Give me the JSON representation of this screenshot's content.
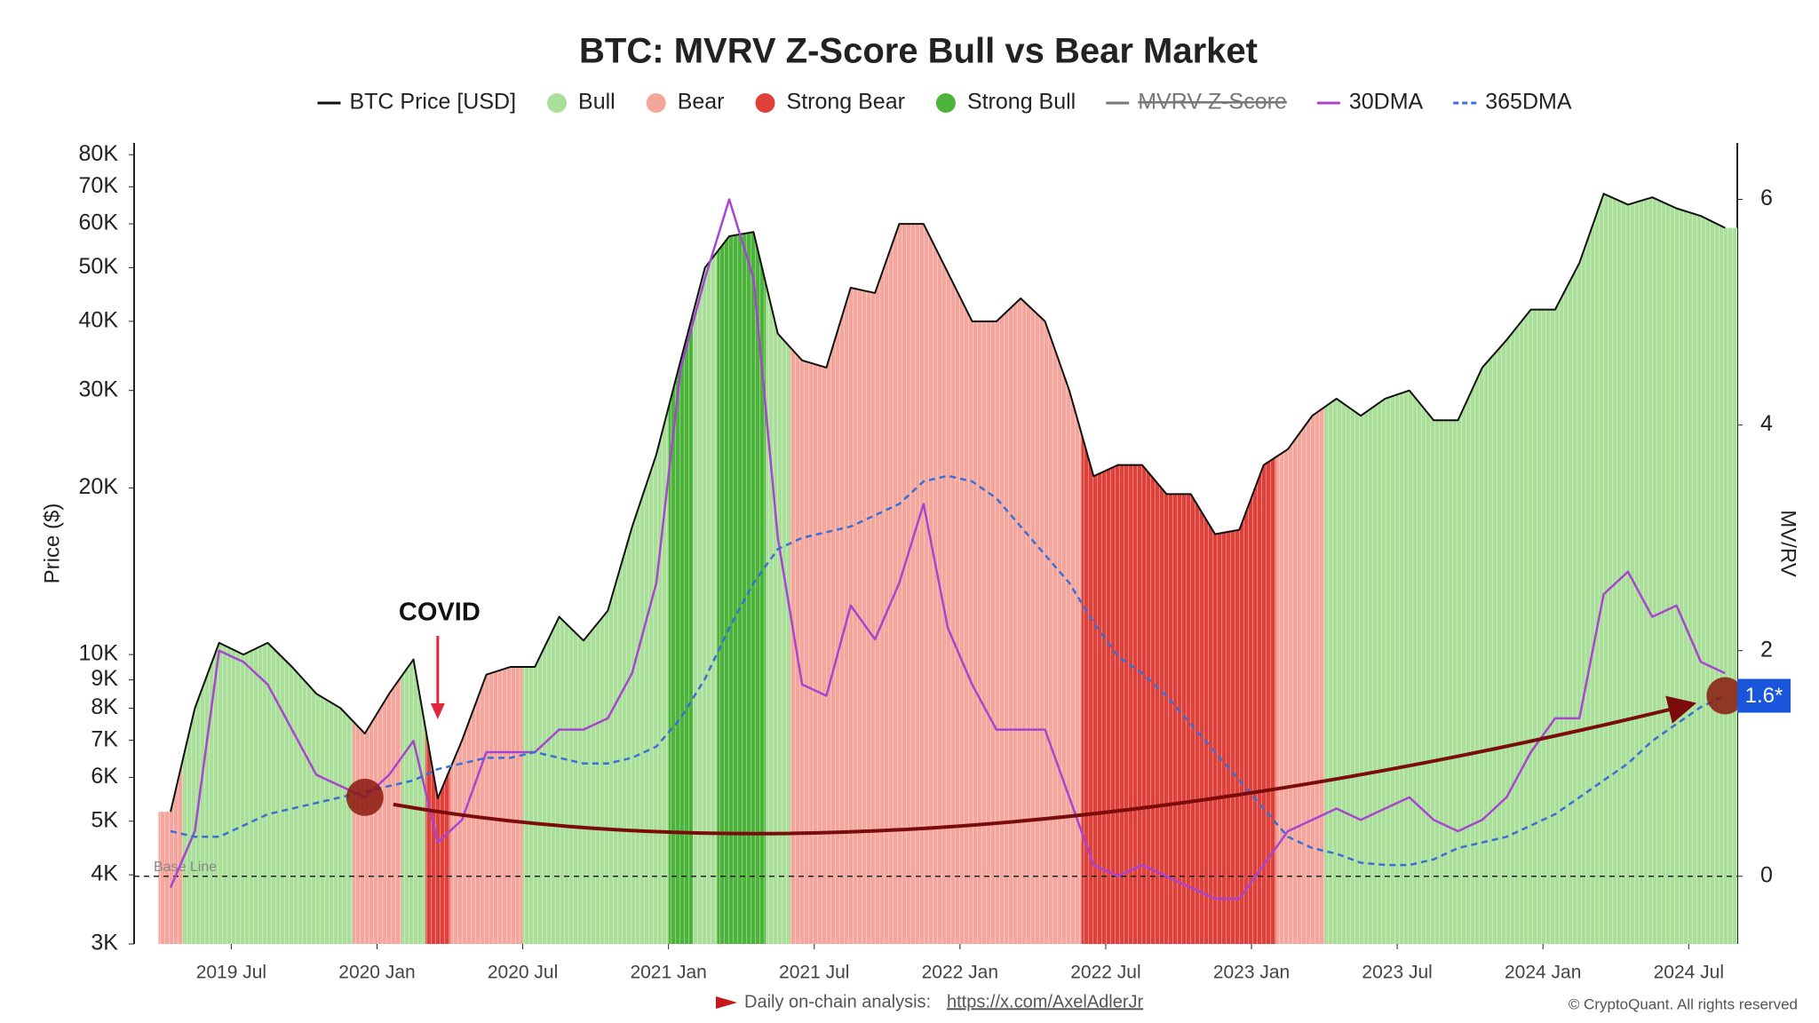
{
  "chart_data": {
    "type": "regime",
    "title": "BTC: MVRV Z-Score Bull vs Bear Market",
    "y_label": "Price ($)",
    "y2_label": "MV/RV",
    "log_scale": true,
    "x": [
      "2019-04",
      "2019-05",
      "2019-06",
      "2019-07",
      "2019-08",
      "2019-09",
      "2019-10",
      "2019-11",
      "2019-12",
      "2020-01",
      "2020-02",
      "2020-03",
      "2020-04",
      "2020-05",
      "2020-06",
      "2020-07",
      "2020-08",
      "2020-09",
      "2020-10",
      "2020-11",
      "2020-12",
      "2021-01",
      "2021-02",
      "2021-03",
      "2021-04",
      "2021-05",
      "2021-06",
      "2021-07",
      "2021-08",
      "2021-09",
      "2021-10",
      "2021-11",
      "2021-12",
      "2022-01",
      "2022-02",
      "2022-03",
      "2022-04",
      "2022-05",
      "2022-06",
      "2022-07",
      "2022-08",
      "2022-09",
      "2022-10",
      "2022-11",
      "2022-12",
      "2023-01",
      "2023-02",
      "2023-03",
      "2023-04",
      "2023-05",
      "2023-06",
      "2023-07",
      "2023-08",
      "2023-09",
      "2023-10",
      "2023-11",
      "2023-12",
      "2024-01",
      "2024-02",
      "2024-03",
      "2024-04",
      "2024-05",
      "2024-06",
      "2024-07",
      "2024-08"
    ],
    "xlim": [
      "2019-03",
      "2024-09"
    ],
    "xticks": [
      {
        "value": "2019-07",
        "label": "2019 Jul"
      },
      {
        "value": "2020-01",
        "label": "2020 Jan"
      },
      {
        "value": "2020-07",
        "label": "2020 Jul"
      },
      {
        "value": "2021-01",
        "label": "2021 Jan"
      },
      {
        "value": "2021-07",
        "label": "2021 Jul"
      },
      {
        "value": "2022-01",
        "label": "2022 Jan"
      },
      {
        "value": "2022-07",
        "label": "2022 Jul"
      },
      {
        "value": "2023-01",
        "label": "2023 Jan"
      },
      {
        "value": "2023-07",
        "label": "2023 Jul"
      },
      {
        "value": "2024-01",
        "label": "2024 Jan"
      },
      {
        "value": "2024-07",
        "label": "2024 Jul"
      }
    ],
    "ylim": [
      3000,
      84000
    ],
    "yticks": [
      {
        "value": 3000,
        "label": "3K"
      },
      {
        "value": 4000,
        "label": "4K"
      },
      {
        "value": 5000,
        "label": "5K"
      },
      {
        "value": 6000,
        "label": "6K"
      },
      {
        "value": 7000,
        "label": "7K"
      },
      {
        "value": 8000,
        "label": "8K"
      },
      {
        "value": 9000,
        "label": "9K"
      },
      {
        "value": 10000,
        "label": "10K"
      },
      {
        "value": 20000,
        "label": "20K"
      },
      {
        "value": 30000,
        "label": "30K"
      },
      {
        "value": 40000,
        "label": "40K"
      },
      {
        "value": 50000,
        "label": "50K"
      },
      {
        "value": 60000,
        "label": "60K"
      },
      {
        "value": 70000,
        "label": "70K"
      },
      {
        "value": 80000,
        "label": "80K"
      }
    ],
    "y2lim": [
      -0.6,
      6.5
    ],
    "y2ticks": [
      0,
      2,
      4,
      6
    ],
    "series": [
      {
        "name": "BTC Price [USD]",
        "color": "#111111",
        "values": [
          5200,
          8000,
          10500,
          10000,
          10500,
          9500,
          8500,
          8000,
          7200,
          8500,
          9800,
          5500,
          7000,
          9200,
          9500,
          9500,
          11700,
          10600,
          12000,
          17000,
          23000,
          34000,
          50000,
          57000,
          58000,
          38000,
          34000,
          33000,
          46000,
          45000,
          60000,
          60000,
          49000,
          40000,
          40000,
          44000,
          40000,
          30000,
          21000,
          22000,
          22000,
          19500,
          19500,
          16500,
          16800,
          22000,
          23500,
          27000,
          29000,
          27000,
          29000,
          30000,
          26500,
          26500,
          33000,
          37000,
          42000,
          42000,
          51000,
          68000,
          65000,
          67000,
          64000,
          62000,
          59000
        ]
      },
      {
        "name": "Bull",
        "color": "#a9df98",
        "periods": [
          [
            "2019-05",
            "2019-11"
          ],
          [
            "2020-02",
            "2020-02"
          ],
          [
            "2020-07",
            "2020-12"
          ],
          [
            "2021-02",
            "2021-02"
          ],
          [
            "2021-05",
            "2021-05"
          ],
          [
            "2023-04",
            "2024-08"
          ]
        ]
      },
      {
        "name": "Bear",
        "color": "#f4a69d",
        "periods": [
          [
            "2019-04",
            "2019-04"
          ],
          [
            "2019-12",
            "2020-01"
          ],
          [
            "2020-04",
            "2020-06"
          ],
          [
            "2021-06",
            "2022-05"
          ],
          [
            "2023-02",
            "2023-03"
          ]
        ]
      },
      {
        "name": "Strong Bear",
        "color": "#e0403a",
        "periods": [
          [
            "2020-03",
            "2020-03"
          ],
          [
            "2022-06",
            "2023-01"
          ]
        ]
      },
      {
        "name": "Strong Bull",
        "color": "#4cb43a",
        "periods": [
          [
            "2021-01",
            "2021-01"
          ],
          [
            "2021-03",
            "2021-04"
          ]
        ]
      },
      {
        "name": "MVRV Z-Score",
        "color": "#777777",
        "hidden": true
      },
      {
        "name": "30DMA",
        "color": "#a845d0",
        "axis": "y2",
        "values": [
          -0.1,
          0.4,
          2.0,
          1.9,
          1.7,
          1.3,
          0.9,
          0.8,
          0.7,
          0.9,
          1.2,
          0.3,
          0.5,
          1.1,
          1.1,
          1.1,
          1.3,
          1.3,
          1.4,
          1.8,
          2.6,
          4.5,
          5.3,
          6.0,
          5.3,
          3.0,
          1.7,
          1.6,
          2.4,
          2.1,
          2.6,
          3.3,
          2.2,
          1.7,
          1.3,
          1.3,
          1.3,
          0.7,
          0.1,
          0.0,
          0.1,
          0.0,
          -0.1,
          -0.2,
          -0.2,
          0.1,
          0.4,
          0.5,
          0.6,
          0.5,
          0.6,
          0.7,
          0.5,
          0.4,
          0.5,
          0.7,
          1.1,
          1.4,
          1.4,
          2.5,
          2.7,
          2.3,
          2.4,
          1.9,
          1.8
        ]
      },
      {
        "name": "365DMA",
        "color": "#3a6fd6",
        "axis": "y2",
        "dashed": true,
        "values": [
          0.4,
          0.35,
          0.35,
          0.45,
          0.55,
          0.6,
          0.65,
          0.7,
          0.75,
          0.8,
          0.85,
          0.95,
          1.0,
          1.05,
          1.05,
          1.1,
          1.05,
          1.0,
          1.0,
          1.05,
          1.15,
          1.4,
          1.75,
          2.2,
          2.6,
          2.9,
          3.0,
          3.05,
          3.1,
          3.2,
          3.3,
          3.5,
          3.55,
          3.5,
          3.35,
          3.1,
          2.85,
          2.6,
          2.25,
          1.95,
          1.8,
          1.6,
          1.35,
          1.1,
          0.85,
          0.6,
          0.35,
          0.25,
          0.2,
          0.12,
          0.1,
          0.1,
          0.15,
          0.25,
          0.3,
          0.35,
          0.45,
          0.55,
          0.7,
          0.85,
          1.0,
          1.2,
          1.35,
          1.5,
          1.6
        ]
      }
    ],
    "baseline": {
      "label": "Base Line",
      "value": 0
    },
    "last_value": {
      "value": 1.6,
      "label": "1.6*"
    },
    "annotation": {
      "text": "COVID",
      "x": "2020-03"
    },
    "trend": {
      "start": {
        "x": "2019-12",
        "y": 0.7
      },
      "end": {
        "x": "2024-08",
        "y": 1.6
      }
    },
    "watermark": "CryptoQuant",
    "footer": {
      "text": "Daily on-chain analysis:",
      "link": "https://x.com/AxelAdlerJr",
      "copyright": "© CryptoQuant. All rights reserved"
    }
  }
}
